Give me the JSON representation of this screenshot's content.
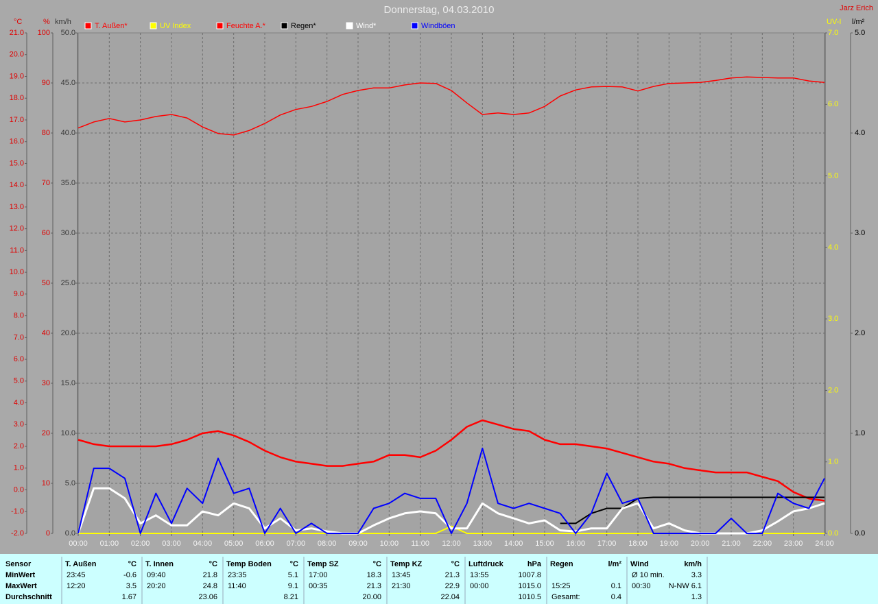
{
  "chart_data": {
    "type": "line",
    "title": "Donnerstag, 04.03.2010",
    "author": "Jarz Erich",
    "x": [
      0,
      0.5,
      1,
      1.5,
      2,
      2.5,
      3,
      3.5,
      4,
      4.5,
      5,
      5.5,
      6,
      6.5,
      7,
      7.5,
      8,
      8.5,
      9,
      9.5,
      10,
      10.5,
      11,
      11.5,
      12,
      12.5,
      13,
      13.5,
      14,
      14.5,
      15,
      15.5,
      16,
      16.5,
      17,
      17.5,
      18,
      18.5,
      19,
      19.5,
      20,
      20.5,
      21,
      21.5,
      22,
      22.5,
      23,
      23.5,
      24
    ],
    "xlim": [
      0,
      24
    ],
    "xticks": [
      {
        "value": 0,
        "label": "00:00"
      },
      {
        "value": 1,
        "label": "01:00"
      },
      {
        "value": 2,
        "label": "02:00"
      },
      {
        "value": 3,
        "label": "03:00"
      },
      {
        "value": 4,
        "label": "04:00"
      },
      {
        "value": 5,
        "label": "05:00"
      },
      {
        "value": 6,
        "label": "06:00"
      },
      {
        "value": 7,
        "label": "07:00"
      },
      {
        "value": 8,
        "label": "08:00"
      },
      {
        "value": 9,
        "label": "09:00"
      },
      {
        "value": 10,
        "label": "10:00"
      },
      {
        "value": 11,
        "label": "11:00"
      },
      {
        "value": 12,
        "label": "12:00"
      },
      {
        "value": 13,
        "label": "13:00"
      },
      {
        "value": 14,
        "label": "14:00"
      },
      {
        "value": 15,
        "label": "15:00"
      },
      {
        "value": 16,
        "label": "16:00"
      },
      {
        "value": 17,
        "label": "17:00"
      },
      {
        "value": 18,
        "label": "18:00"
      },
      {
        "value": 19,
        "label": "19:00"
      },
      {
        "value": 20,
        "label": "20:00"
      },
      {
        "value": 21,
        "label": "21:00"
      },
      {
        "value": 22,
        "label": "22:00"
      },
      {
        "value": 23,
        "label": "23:00"
      },
      {
        "value": 24,
        "label": "24:00"
      }
    ],
    "axes": [
      {
        "unit": "°C",
        "color": "#e00000",
        "lim": [
          -2,
          21
        ],
        "ticks": [
          {
            "value": -2,
            "label": "-2.0"
          },
          {
            "value": -1,
            "label": "-1.0"
          },
          {
            "value": 0,
            "label": "0.0"
          },
          {
            "value": 1,
            "label": "1.0"
          },
          {
            "value": 2,
            "label": "2.0"
          },
          {
            "value": 3,
            "label": "3.0"
          },
          {
            "value": 4,
            "label": "4.0"
          },
          {
            "value": 5,
            "label": "5.0"
          },
          {
            "value": 6,
            "label": "6.0"
          },
          {
            "value": 7,
            "label": "7.0"
          },
          {
            "value": 8,
            "label": "8.0"
          },
          {
            "value": 9,
            "label": "9.0"
          },
          {
            "value": 10,
            "label": "10.0"
          },
          {
            "value": 11,
            "label": "11.0"
          },
          {
            "value": 12,
            "label": "12.0"
          },
          {
            "value": 13,
            "label": "13.0"
          },
          {
            "value": 14,
            "label": "14.0"
          },
          {
            "value": 15,
            "label": "15.0"
          },
          {
            "value": 16,
            "label": "16.0"
          },
          {
            "value": 17,
            "label": "17.0"
          },
          {
            "value": 18,
            "label": "18.0"
          },
          {
            "value": 19,
            "label": "19.0"
          },
          {
            "value": 20,
            "label": "20.0"
          },
          {
            "value": 21,
            "label": "21.0"
          }
        ]
      },
      {
        "unit": "%",
        "color": "#e00000",
        "lim": [
          0,
          100
        ],
        "ticks": [
          0,
          10,
          20,
          30,
          40,
          50,
          60,
          70,
          80,
          90,
          100
        ]
      },
      {
        "unit": "km/h",
        "color": "#383838",
        "lim": [
          0,
          50
        ],
        "grid": true,
        "ticks": [
          {
            "value": 0,
            "label": "0.0"
          },
          {
            "value": 5,
            "label": "5.0"
          },
          {
            "value": 10,
            "label": "10.0"
          },
          {
            "value": 15,
            "label": "15.0"
          },
          {
            "value": 20,
            "label": "20.0"
          },
          {
            "value": 25,
            "label": "25.0"
          },
          {
            "value": 30,
            "label": "30.0"
          },
          {
            "value": 35,
            "label": "35.0"
          },
          {
            "value": 40,
            "label": "40.0"
          },
          {
            "value": 45,
            "label": "45.0"
          },
          {
            "value": 50,
            "label": "50.0"
          }
        ]
      },
      {
        "unit": "UV-I",
        "color": "#ffff00",
        "lim": [
          0,
          7
        ],
        "ticks": [
          {
            "value": 0,
            "label": "0.0"
          },
          {
            "value": 1,
            "label": "1.0"
          },
          {
            "value": 2,
            "label": "2.0"
          },
          {
            "value": 3,
            "label": "3.0"
          },
          {
            "value": 4,
            "label": "4.0"
          },
          {
            "value": 5,
            "label": "5.0"
          },
          {
            "value": 6,
            "label": "6.0"
          },
          {
            "value": 7,
            "label": "7.0"
          }
        ]
      },
      {
        "unit": "l/m²",
        "color": "#000000",
        "lim": [
          0,
          5
        ],
        "ticks": [
          {
            "value": 0,
            "label": "0.0"
          },
          {
            "value": 1,
            "label": "1.0"
          },
          {
            "value": 2,
            "label": "2.0"
          },
          {
            "value": 3,
            "label": "3.0"
          },
          {
            "value": 4,
            "label": "4.0"
          },
          {
            "value": 5,
            "label": "5.0"
          }
        ]
      }
    ],
    "series": [
      {
        "name": "T. Außen*",
        "color": "#ff0000",
        "axis": "°C",
        "values": [
          2.3,
          2.1,
          2.0,
          2.0,
          2.0,
          2.0,
          2.1,
          2.3,
          2.6,
          2.7,
          2.5,
          2.2,
          1.8,
          1.5,
          1.3,
          1.2,
          1.1,
          1.1,
          1.2,
          1.3,
          1.6,
          1.6,
          1.5,
          1.8,
          2.3,
          2.9,
          3.2,
          3.0,
          2.8,
          2.7,
          2.3,
          2.1,
          2.1,
          2.0,
          1.9,
          1.7,
          1.5,
          1.3,
          1.2,
          1.0,
          0.9,
          0.8,
          0.8,
          0.8,
          0.6,
          0.4,
          -0.1,
          -0.4,
          -0.5
        ]
      },
      {
        "name": "UV Index",
        "color": "#ffff00",
        "axis": "UV-I",
        "values": [
          0,
          0,
          0,
          0,
          0,
          0,
          0,
          0,
          0,
          0,
          0,
          0,
          0,
          0,
          0,
          0,
          0,
          0,
          0,
          0,
          0,
          0,
          0,
          0,
          0.1,
          0,
          0,
          0,
          0,
          0,
          0,
          0,
          0,
          0,
          0,
          0,
          0,
          0,
          0,
          0,
          0,
          0,
          0,
          0,
          0,
          0,
          0,
          0,
          0
        ]
      },
      {
        "name": "Feuchte A.*",
        "color": "#ff0000",
        "axis": "%",
        "values": [
          81.0,
          82.2,
          82.9,
          82.2,
          82.6,
          83.3,
          83.7,
          83.0,
          81.2,
          79.9,
          79.6,
          80.5,
          81.9,
          83.6,
          84.7,
          85.3,
          86.3,
          87.7,
          88.5,
          89.0,
          89.0,
          89.6,
          90.0,
          89.9,
          88.5,
          86.0,
          83.7,
          84.0,
          83.7,
          84.0,
          85.3,
          87.4,
          88.6,
          89.2,
          89.3,
          89.2,
          88.4,
          89.3,
          89.9,
          90.0,
          90.1,
          90.5,
          91.0,
          91.2,
          91.1,
          91.0,
          91.0,
          90.4,
          90.1
        ]
      },
      {
        "name": "Regen*",
        "color": "#000000",
        "axis": "l/m²",
        "values": [
          null,
          null,
          null,
          null,
          null,
          null,
          null,
          null,
          null,
          null,
          null,
          null,
          null,
          null,
          null,
          null,
          null,
          null,
          null,
          null,
          null,
          null,
          null,
          null,
          null,
          null,
          null,
          null,
          null,
          null,
          null,
          0.1,
          0.1,
          0.2,
          0.25,
          0.25,
          0.35,
          0.36,
          0.36,
          0.36,
          0.36,
          0.36,
          0.36,
          0.36,
          0.36,
          0.36,
          0.36,
          0.36,
          0.36
        ]
      },
      {
        "name": "Wind*",
        "color": "#ffffff",
        "axis": "km/h",
        "values": [
          0,
          4.5,
          4.5,
          3.5,
          1,
          1.8,
          0.8,
          0.8,
          2.2,
          1.8,
          3,
          2.5,
          0.5,
          1.5,
          0.3,
          0.5,
          0.2,
          0,
          0,
          0.8,
          1.5,
          2,
          2.2,
          2,
          0.5,
          0.5,
          3,
          2,
          1.5,
          1,
          1.3,
          0.3,
          0.2,
          0.5,
          0.5,
          2.5,
          3,
          0.5,
          1,
          0.3,
          0,
          0,
          0,
          0,
          0.3,
          1.2,
          2.2,
          2.5,
          3
        ]
      },
      {
        "name": "Windböen",
        "color": "#0000ff",
        "axis": "km/h",
        "values": [
          0,
          6.5,
          6.5,
          5.5,
          0,
          4,
          1,
          4.5,
          3,
          7.5,
          4,
          4.5,
          0,
          2.5,
          0,
          1,
          0,
          0,
          0,
          2.5,
          3,
          4,
          3.5,
          3.5,
          0,
          3,
          8.5,
          3,
          2.5,
          3,
          2.5,
          2,
          0,
          2,
          6,
          3,
          3.5,
          0,
          0,
          0,
          0,
          0,
          1.5,
          0,
          0,
          4,
          3,
          2.5,
          5.5
        ]
      }
    ]
  },
  "table": {
    "row_labels": [
      "Sensor",
      "MinWert",
      "MaxWert",
      "Durchschnitt"
    ],
    "groups": [
      {
        "name": "T. Außen",
        "unit": "°C",
        "rows": [
          [
            "23:45",
            "-0.6"
          ],
          [
            "12:20",
            "3.5"
          ],
          [
            null,
            "1.67"
          ]
        ]
      },
      {
        "name": "T. Innen",
        "unit": "°C",
        "rows": [
          [
            "09:40",
            "21.8"
          ],
          [
            "20:20",
            "24.8"
          ],
          [
            null,
            "23.06"
          ]
        ]
      },
      {
        "name": "Temp Boden",
        "unit": "°C",
        "rows": [
          [
            "23:35",
            "5.1"
          ],
          [
            "11:40",
            "9.1"
          ],
          [
            null,
            "8.21"
          ]
        ]
      },
      {
        "name": "Temp SZ",
        "unit": "°C",
        "rows": [
          [
            "17:00",
            "18.3"
          ],
          [
            "00:35",
            "21.3"
          ],
          [
            null,
            "20.00"
          ]
        ]
      },
      {
        "name": "Temp KZ",
        "unit": "°C",
        "rows": [
          [
            "13:45",
            "21.3"
          ],
          [
            "21:30",
            "22.9"
          ],
          [
            null,
            "22.04"
          ]
        ]
      },
      {
        "name": "Luftdruck",
        "unit": "hPa",
        "rows": [
          [
            "13:55",
            "1007.8"
          ],
          [
            "00:00",
            "1015.0"
          ],
          [
            null,
            "1010.5"
          ]
        ]
      },
      {
        "name": "Regen",
        "unit": "l/m²",
        "rows": [
          [
            null,
            null
          ],
          [
            "15:25",
            "0.1"
          ],
          [
            "Gesamt:",
            "0.4"
          ]
        ]
      },
      {
        "name": "Wind",
        "unit": "km/h",
        "rows": [
          [
            "Ø 10 min.",
            "3.3"
          ],
          [
            "00:30",
            "N-NW 6.1"
          ],
          [
            null,
            "1.3"
          ]
        ]
      }
    ]
  }
}
